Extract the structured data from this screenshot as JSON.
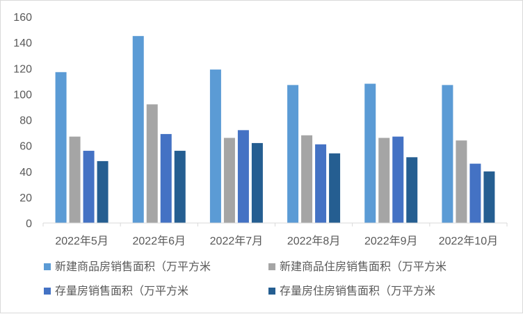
{
  "chart_data": {
    "type": "bar",
    "categories": [
      "2022年5月",
      "2022年6月",
      "2022年7月",
      "2022年8月",
      "2022年9月",
      "2022年10月"
    ],
    "series": [
      {
        "name": "新建商品房销售面积（万平方米",
        "color": "#5b9bd5",
        "values": [
          117,
          145,
          119,
          107,
          108,
          107
        ]
      },
      {
        "name": "新建商品住房销售面积（万平方米",
        "color": "#a5a5a5",
        "values": [
          67,
          92,
          66,
          68,
          66,
          64
        ]
      },
      {
        "name": "存量房销售面积（万平方米",
        "color": "#4472c4",
        "values": [
          56,
          69,
          72,
          61,
          67,
          46
        ]
      },
      {
        "name": "存量房住房销售面积（万平方米",
        "color": "#255e91",
        "values": [
          48,
          56,
          62,
          54,
          51,
          40
        ]
      }
    ],
    "y_ticks": [
      "0",
      "20",
      "40",
      "60",
      "80",
      "100",
      "120",
      "140",
      "160"
    ],
    "ylim": [
      0,
      160
    ],
    "title": "",
    "xlabel": "",
    "ylabel": "",
    "grid": false,
    "legend_position": "bottom"
  }
}
